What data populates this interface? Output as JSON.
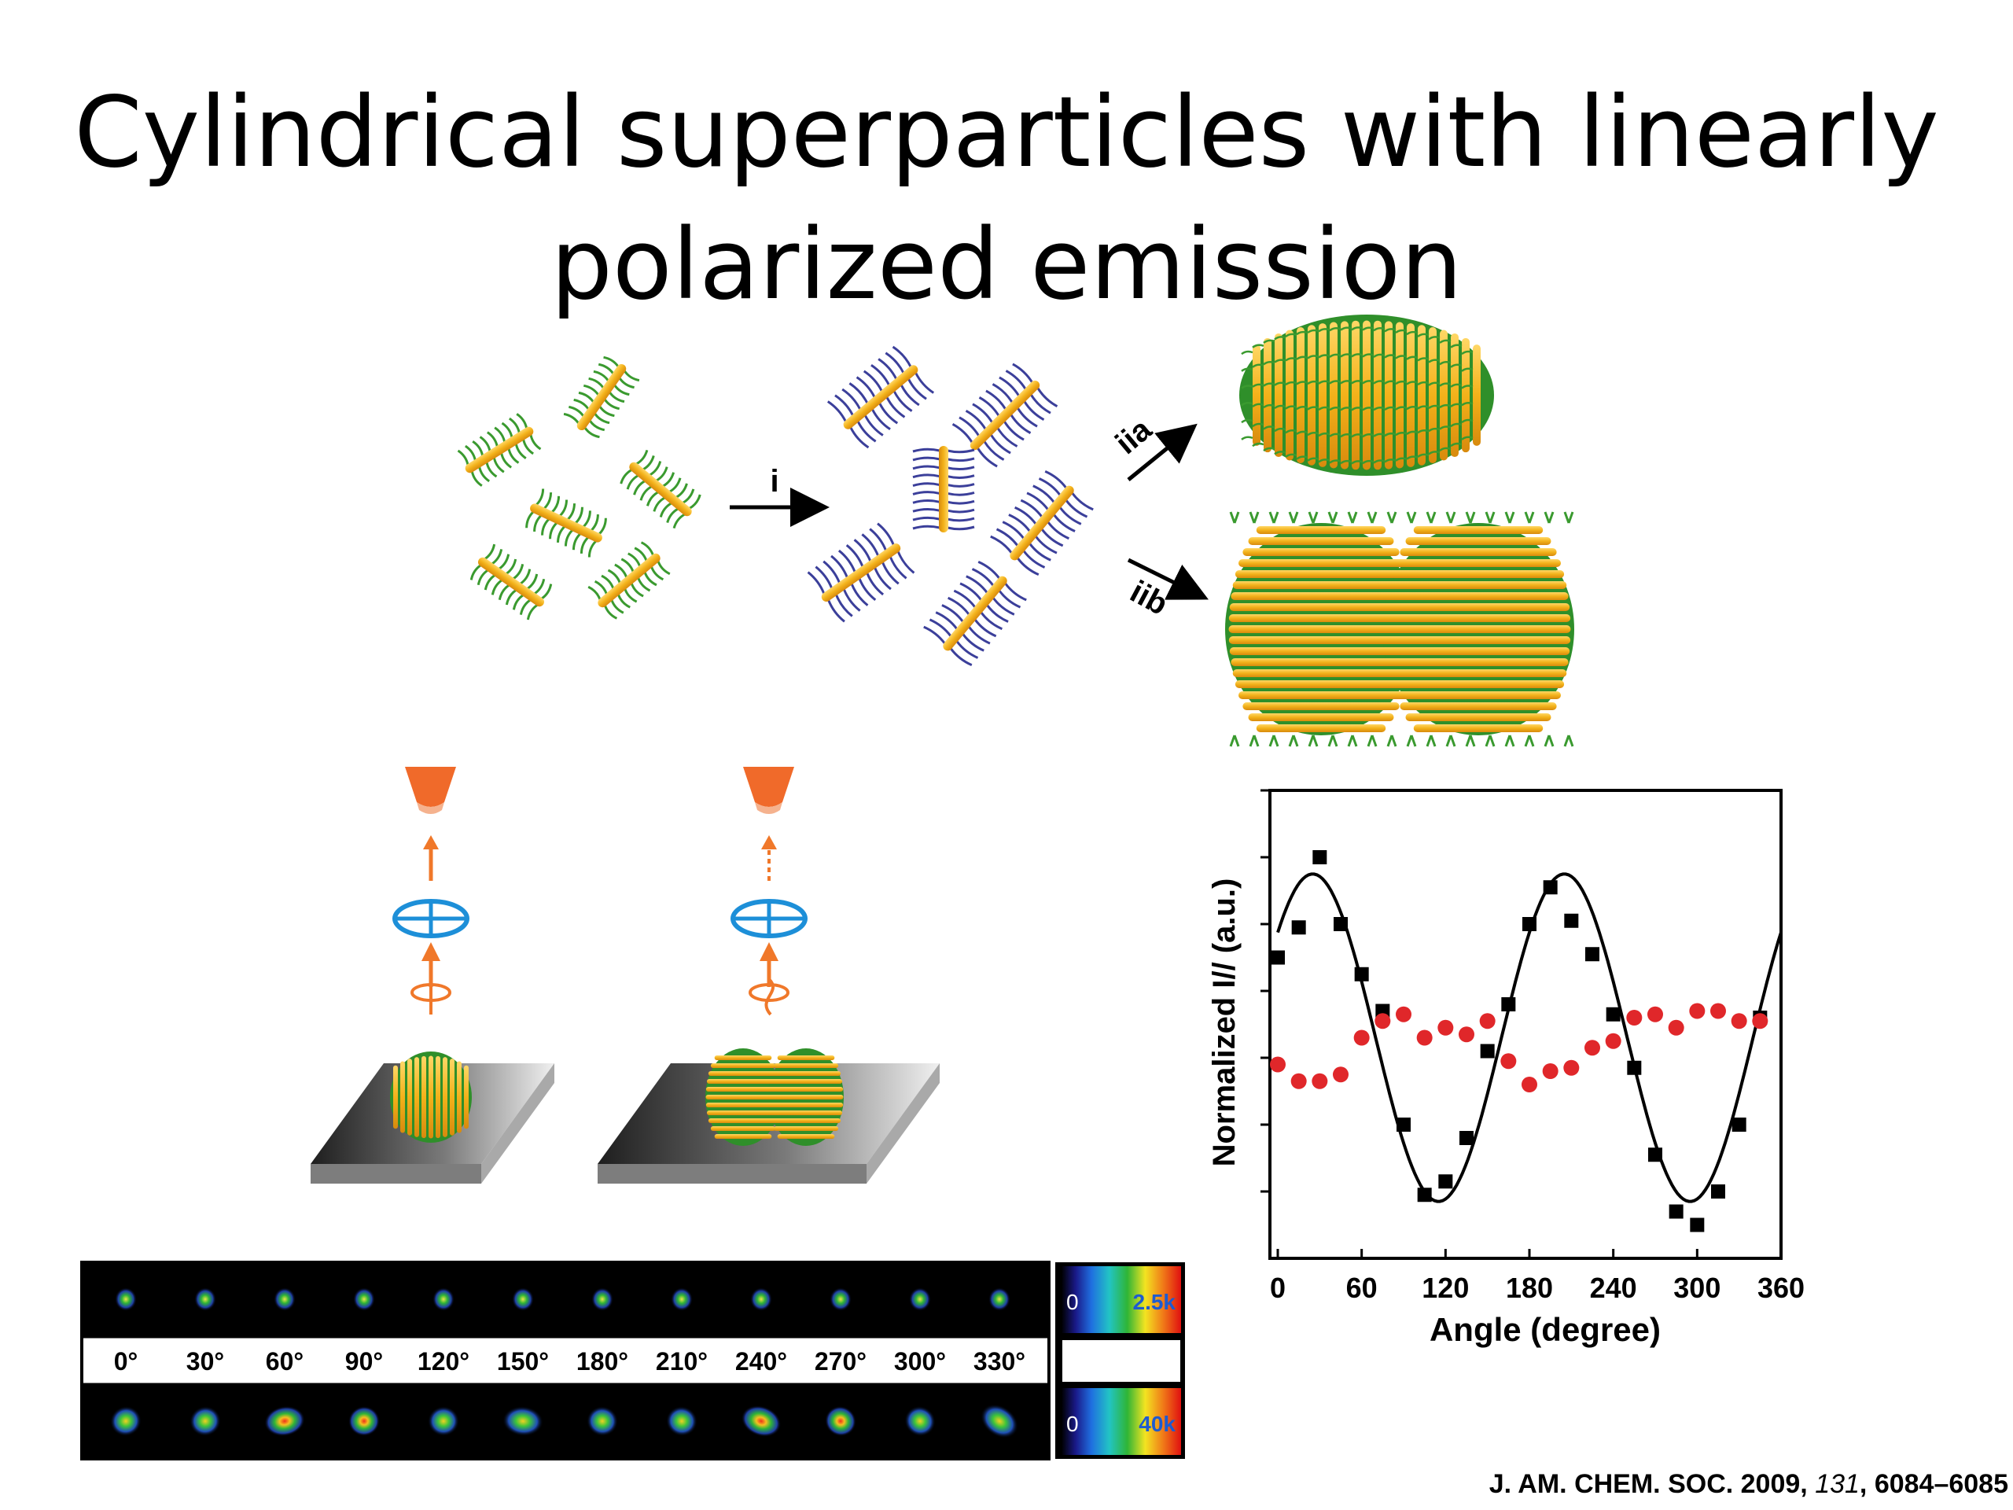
{
  "title": {
    "line1": "Cylindrical superparticles with linearly",
    "line2": "polarized emission"
  },
  "scheme": {
    "step_i": "i",
    "step_iia": "iia",
    "step_iib": "iib",
    "colors": {
      "rod": "#f3b21a",
      "ligand_green": "#3a9a2f",
      "ligand_blue": "#3b3f9a"
    }
  },
  "images": {
    "angles": [
      "0°",
      "30°",
      "60°",
      "90°",
      "120°",
      "150°",
      "180°",
      "210°",
      "240°",
      "270°",
      "300°",
      "330°"
    ],
    "top_scale_min": "0",
    "top_scale_max": "2.5k",
    "bottom_scale_min": "0",
    "bottom_scale_max": "40k"
  },
  "chart_data": {
    "type": "scatter",
    "xlabel": "Angle (degree)",
    "ylabel": "Normalized I// (a.u.)",
    "xlim": [
      0,
      360
    ],
    "ylim": [
      0,
      7
    ],
    "xticks": [
      "0",
      "60",
      "120",
      "180",
      "240",
      "300",
      "360"
    ],
    "series": [
      {
        "marker": "square",
        "color": "#000000",
        "x": [
          0,
          15,
          30,
          45,
          60,
          75,
          90,
          105,
          120,
          135,
          150,
          165,
          180,
          195,
          210,
          225,
          240,
          255,
          270,
          285,
          300,
          315,
          330,
          345
        ],
        "y": [
          4.5,
          4.95,
          6.0,
          5.0,
          4.25,
          3.7,
          2.0,
          0.95,
          1.15,
          1.8,
          3.1,
          3.8,
          5.0,
          5.55,
          5.05,
          4.55,
          3.65,
          2.85,
          1.55,
          0.7,
          0.5,
          1.0,
          2.0,
          3.6
        ]
      },
      {
        "marker": "circle",
        "color": "#e0272a",
        "x": [
          0,
          15,
          30,
          45,
          60,
          75,
          90,
          105,
          120,
          135,
          150,
          165,
          180,
          195,
          210,
          225,
          240,
          255,
          270,
          285,
          300,
          315,
          330,
          345
        ],
        "y": [
          2.9,
          2.65,
          2.65,
          2.75,
          3.3,
          3.55,
          3.65,
          3.3,
          3.45,
          3.35,
          3.55,
          2.95,
          2.6,
          2.8,
          2.85,
          3.15,
          3.25,
          3.6,
          3.65,
          3.45,
          3.7,
          3.7,
          3.55,
          3.55
        ]
      },
      {
        "type": "line",
        "color": "#000000",
        "function": "sine fit",
        "period": 180,
        "amplitude": 2.45,
        "offset": 3.3,
        "peak_at": 25
      }
    ]
  },
  "citation": {
    "journal": "J. AM. CHEM. SOC. 2009,",
    "volume": "131",
    "pages": ", 6084–6085"
  }
}
